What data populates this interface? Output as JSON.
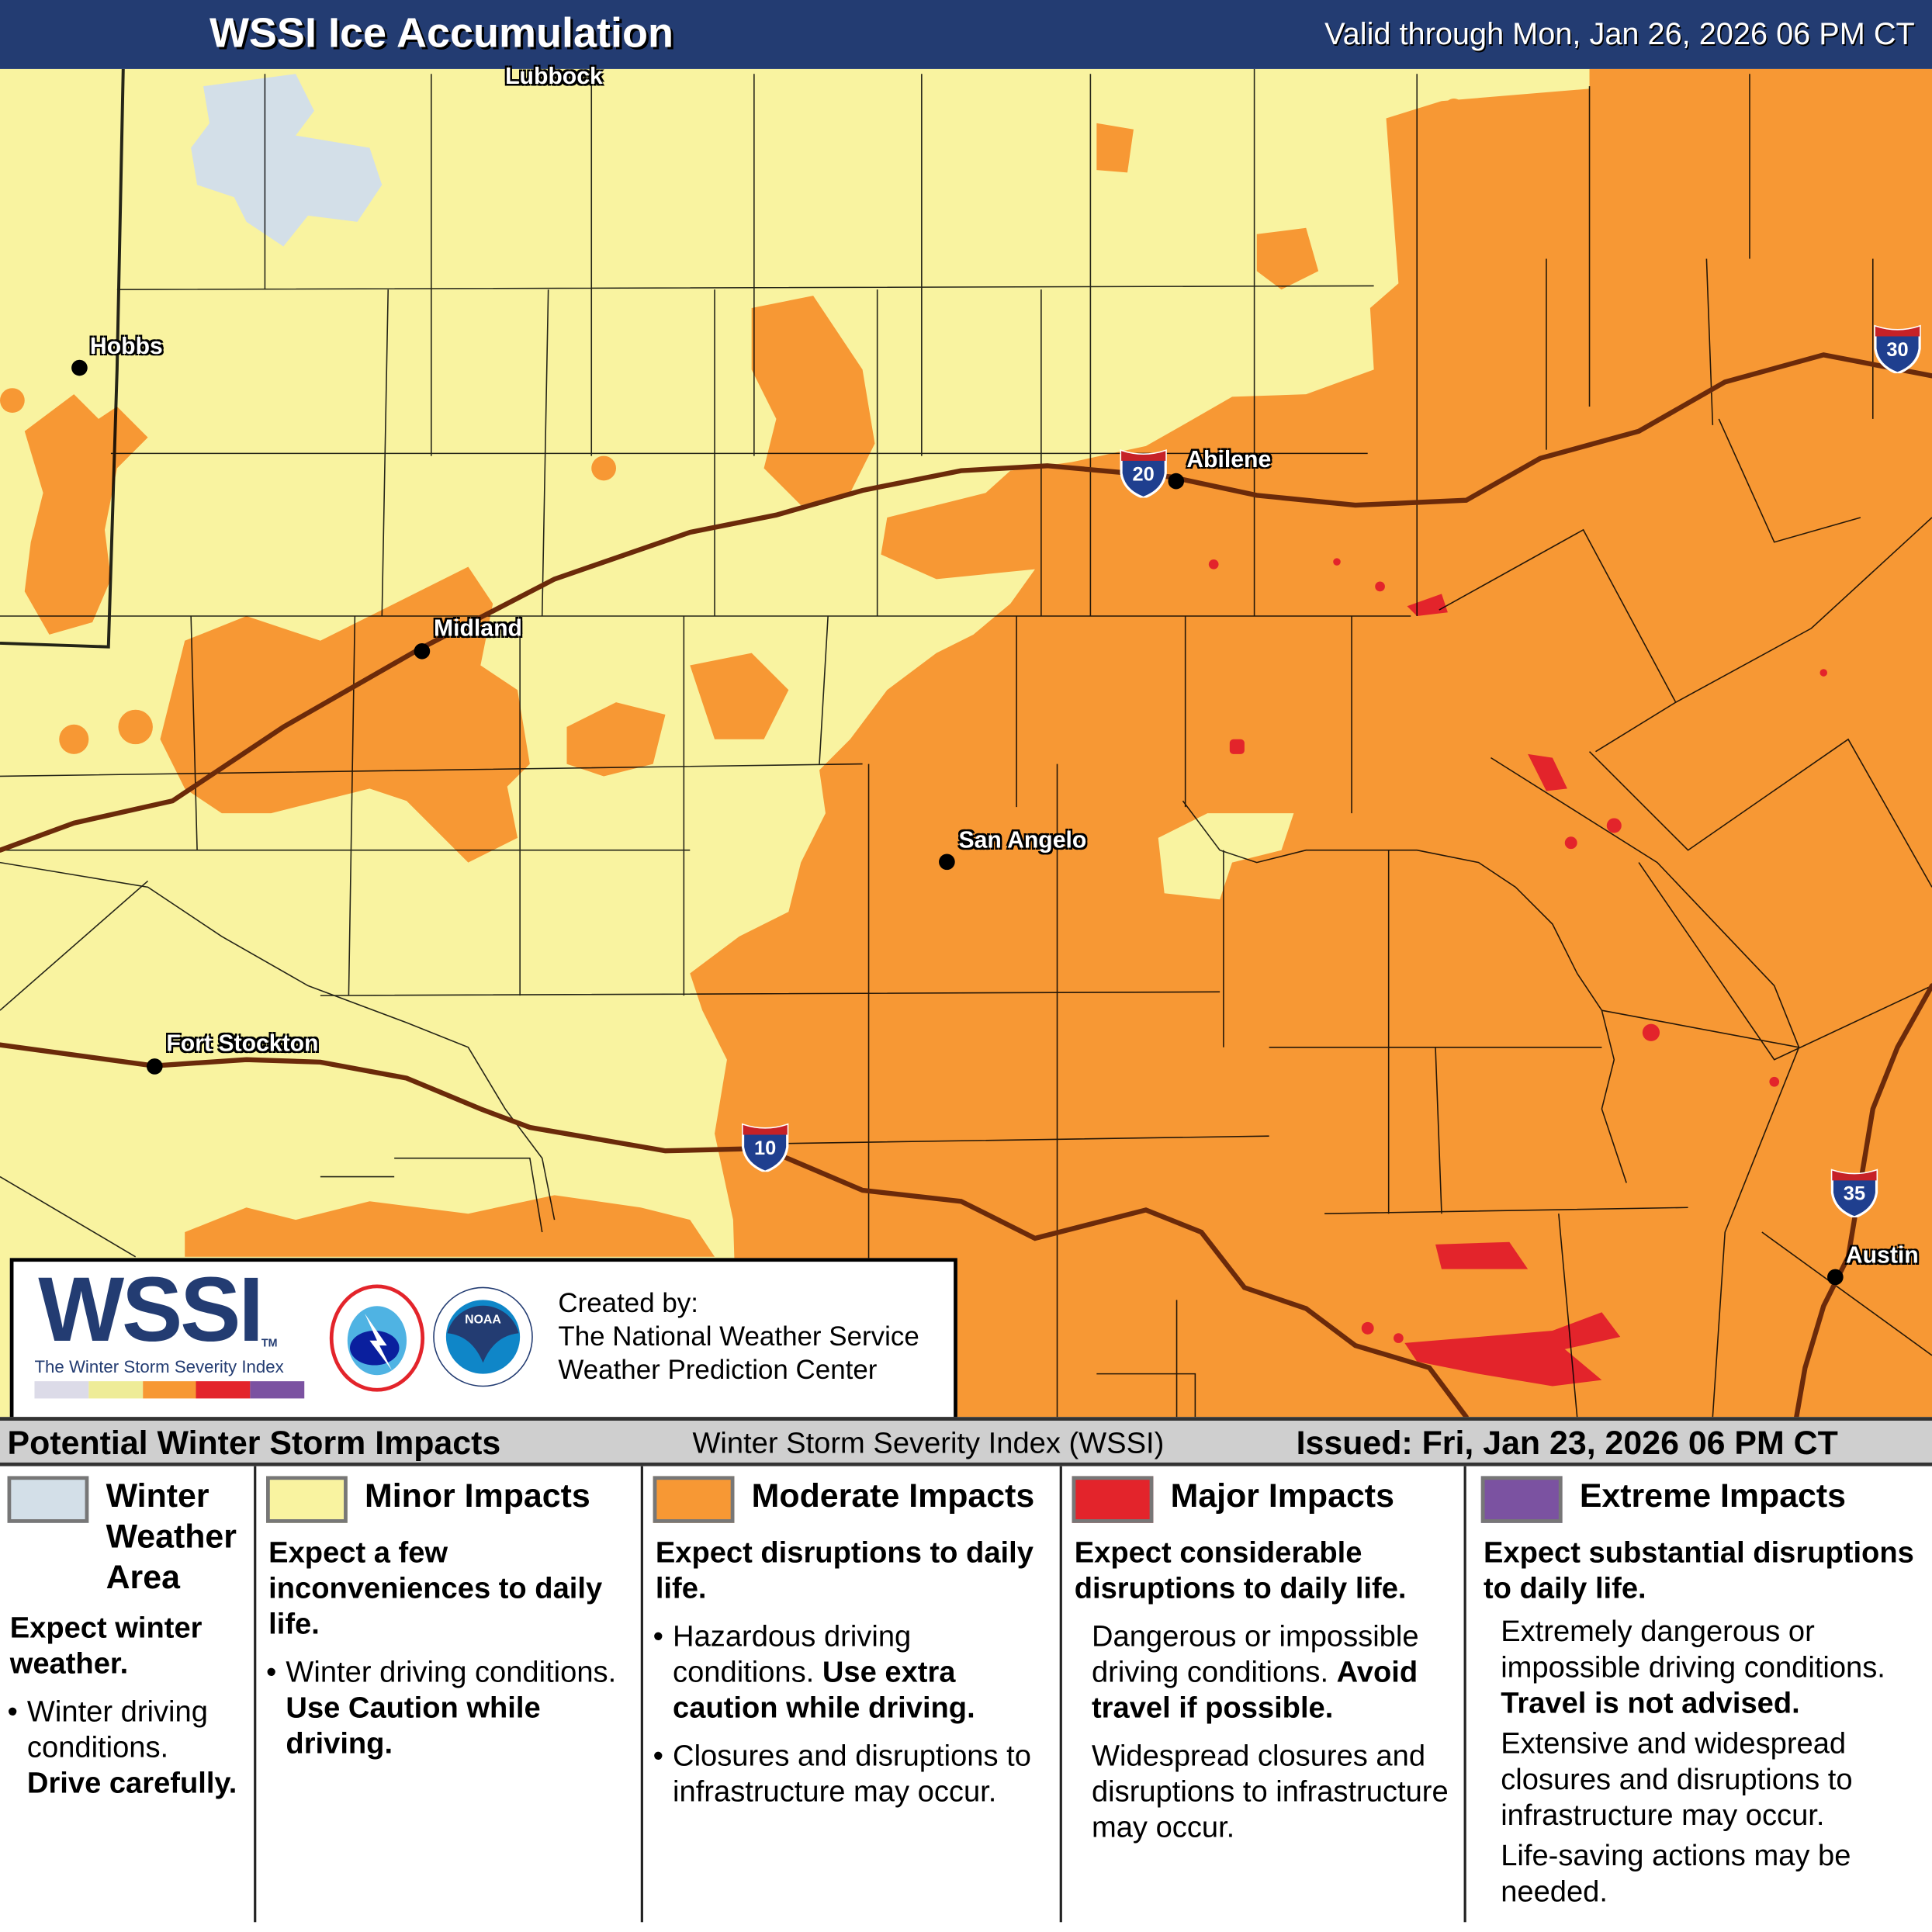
{
  "header": {
    "title": "WSSI Ice Accumulation",
    "valid": "Valid through Mon, Jan 26, 2026 06 PM CT"
  },
  "colors": {
    "header_bg": "#233c72",
    "winter_weather_area": "#d3dfe8",
    "minor": "#f9f3a0",
    "moderate": "#f79834",
    "major": "#e3242b",
    "extreme": "#7b52a1",
    "highway": "#6b2a0a"
  },
  "map": {
    "cities": [
      {
        "name": "Lubbock"
      },
      {
        "name": "Hobbs"
      },
      {
        "name": "Midland"
      },
      {
        "name": "Abilene"
      },
      {
        "name": "San Angelo"
      },
      {
        "name": "Fort Stockton"
      },
      {
        "name": "Austin"
      }
    ],
    "interstates": [
      "30",
      "20",
      "10",
      "35"
    ]
  },
  "credit": {
    "logo_text": "WSSI",
    "logo_tm": "TM",
    "logo_subtitle": "The Winter Storm Severity Index",
    "nws_logo": "NATIONAL WEATHER SERVICE",
    "noaa_logo": "NOAA",
    "created_by": "Created by:",
    "org1": "The National Weather Service",
    "org2": "Weather Prediction Center"
  },
  "legend": {
    "heading": "Potential Winter Storm Impacts",
    "index_name": "Winter Storm Severity Index (WSSI)",
    "issued": "Issued: Fri, Jan 23, 2026 06 PM CT",
    "categories": [
      {
        "name": "Winter Weather Area",
        "summary": "Expect winter weather.",
        "d1": "Winter driving conditions.",
        "d1b": "Drive carefully."
      },
      {
        "name": "Minor Impacts",
        "summary": "Expect a few inconveniences to daily life.",
        "d1": "Winter driving conditions.",
        "d1b": "Use Caution while driving."
      },
      {
        "name": "Moderate Impacts",
        "summary": "Expect disruptions to daily life.",
        "d1": "Hazardous driving conditions.",
        "d1b": "Use extra caution while driving.",
        "d2": "Closures and disruptions to infrastructure may occur."
      },
      {
        "name": "Major Impacts",
        "summary": "Expect considerable disruptions to daily life.",
        "d1": "Dangerous or impossible driving conditions.",
        "d1b": "Avoid travel if possible.",
        "d2": "Widespread closures and disruptions to infrastructure may occur."
      },
      {
        "name": "Extreme Impacts",
        "summary": "Expect substantial disruptions to daily life.",
        "d1": "Extremely dangerous or impossible driving conditions.",
        "d1b": "Travel is not advised.",
        "d2": "Extensive and widespread closures and disruptions to infrastructure may occur.",
        "d3": "Life-saving actions may be needed."
      }
    ]
  }
}
